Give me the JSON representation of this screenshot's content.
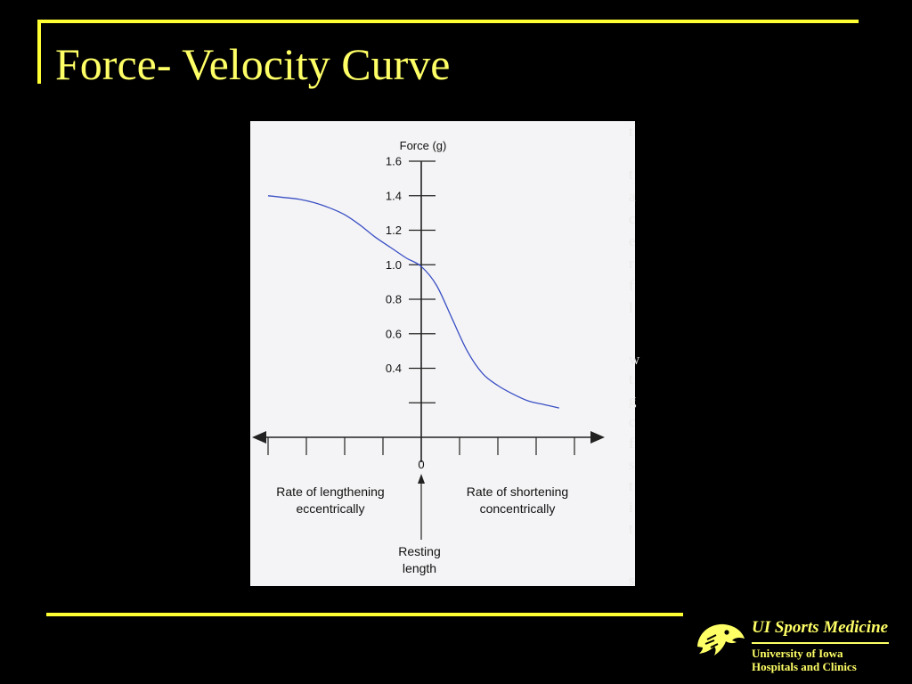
{
  "slide": {
    "title": "Force- Velocity Curve",
    "title_color": "#ffff66",
    "accent_color": "#ffff33",
    "background": "#000000"
  },
  "chart_data": {
    "type": "line",
    "title": "",
    "ylabel": "Force (g)",
    "y_ticks": [
      "1.6",
      "1.4",
      "1.2",
      "1.0",
      "0.8",
      "0.6",
      "0.4"
    ],
    "y_tick_values": [
      1.6,
      1.4,
      1.2,
      1.0,
      0.8,
      0.6,
      0.4
    ],
    "y_minor_tick_values": [
      0.2
    ],
    "ylim": [
      0,
      1.6
    ],
    "x_origin_label": "0",
    "xlim": [
      -1,
      1
    ],
    "x_tick_count_each_side": 4,
    "grid": false,
    "series": [
      {
        "color": "#3a4fc4",
        "x": [
          -1.0,
          -0.9,
          -0.8,
          -0.7,
          -0.6,
          -0.5,
          -0.4,
          -0.3,
          -0.2,
          -0.1,
          0.0,
          0.1,
          0.2,
          0.3,
          0.4,
          0.5,
          0.6,
          0.7,
          0.8,
          0.9
        ],
        "y": [
          1.4,
          1.39,
          1.38,
          1.36,
          1.33,
          1.29,
          1.23,
          1.16,
          1.1,
          1.04,
          0.99,
          0.88,
          0.69,
          0.5,
          0.37,
          0.3,
          0.25,
          0.21,
          0.19,
          0.17
        ]
      }
    ],
    "annotations": {
      "left_line1": "Rate of lengthening",
      "left_line2": "eccentrically",
      "right_line1": "Rate of shortening",
      "right_line2": "concentrically",
      "center_line1": "Resting",
      "center_line2": "length"
    }
  },
  "page_edge_letters": [
    "t",
    "t",
    "a",
    "c",
    "e",
    "r",
    "f",
    "l",
    "w",
    "t",
    "g",
    "c",
    "f",
    "s",
    "t",
    "i",
    "t",
    "s"
  ],
  "logo": {
    "brand": "UI Sports Medicine",
    "org_line1": "University of Iowa",
    "org_line2": "Hospitals and Clinics",
    "icon": "hawkeye-icon",
    "color": "#ffff66"
  }
}
